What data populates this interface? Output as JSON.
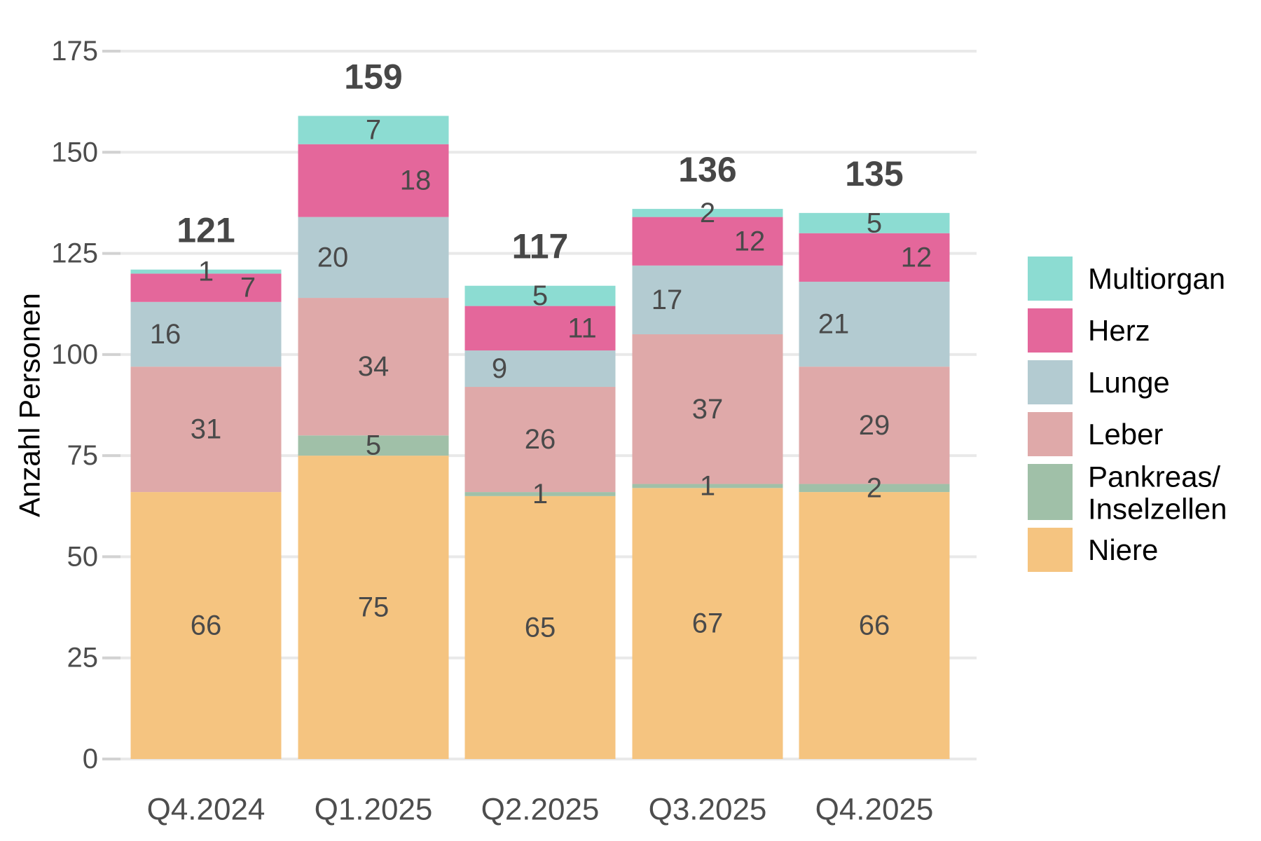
{
  "chart_data": {
    "type": "bar",
    "subtype": "stacked-vertical",
    "title": "",
    "ylabel": "Anzahl Personen",
    "xlabel": "",
    "categories": [
      "Q4.2024",
      "Q1.2025",
      "Q2.2025",
      "Q3.2025",
      "Q4.2025"
    ],
    "series": [
      {
        "name": "Niere",
        "color": "#F5C480",
        "values": [
          66,
          75,
          65,
          67,
          66
        ]
      },
      {
        "name": "Pankreas/Inselzellen",
        "color": "#A0C0A8",
        "values": [
          0,
          5,
          1,
          1,
          2
        ]
      },
      {
        "name": "Leber",
        "color": "#DFA9A9",
        "values": [
          31,
          34,
          26,
          37,
          29
        ]
      },
      {
        "name": "Lunge",
        "color": "#B3CBD1",
        "values": [
          16,
          20,
          9,
          17,
          21
        ]
      },
      {
        "name": "Herz",
        "color": "#E4679B",
        "values": [
          7,
          18,
          11,
          12,
          12
        ]
      },
      {
        "name": "Multiorgan",
        "color": "#8CDCD2",
        "values": [
          1,
          7,
          5,
          2,
          5
        ]
      }
    ],
    "totals": [
      121,
      159,
      117,
      136,
      135
    ],
    "y_axis": {
      "min": 0,
      "max": 175,
      "step": 25,
      "tick_labels": [
        "0",
        "25",
        "50",
        "75",
        "100",
        "125",
        "150",
        "175"
      ]
    },
    "legend": {
      "position": "right",
      "entries": [
        "Multiorgan",
        "Herz",
        "Lunge",
        "Leber",
        "Pankreas/Inselzellen",
        "Niere"
      ],
      "pankreas_display_lines": [
        "Pankreas/",
        "Inselzellen"
      ]
    },
    "grid": true,
    "colors_meta": {
      "gridline": "#E9E9E9",
      "axis_tick": "#D2D2D2",
      "tick_label_text": "#4D4D4D",
      "segment_label_text": "#4A4A4A",
      "total_label_text": "#474747",
      "legend_text": "#000000",
      "background": "#FFFFFF"
    }
  }
}
